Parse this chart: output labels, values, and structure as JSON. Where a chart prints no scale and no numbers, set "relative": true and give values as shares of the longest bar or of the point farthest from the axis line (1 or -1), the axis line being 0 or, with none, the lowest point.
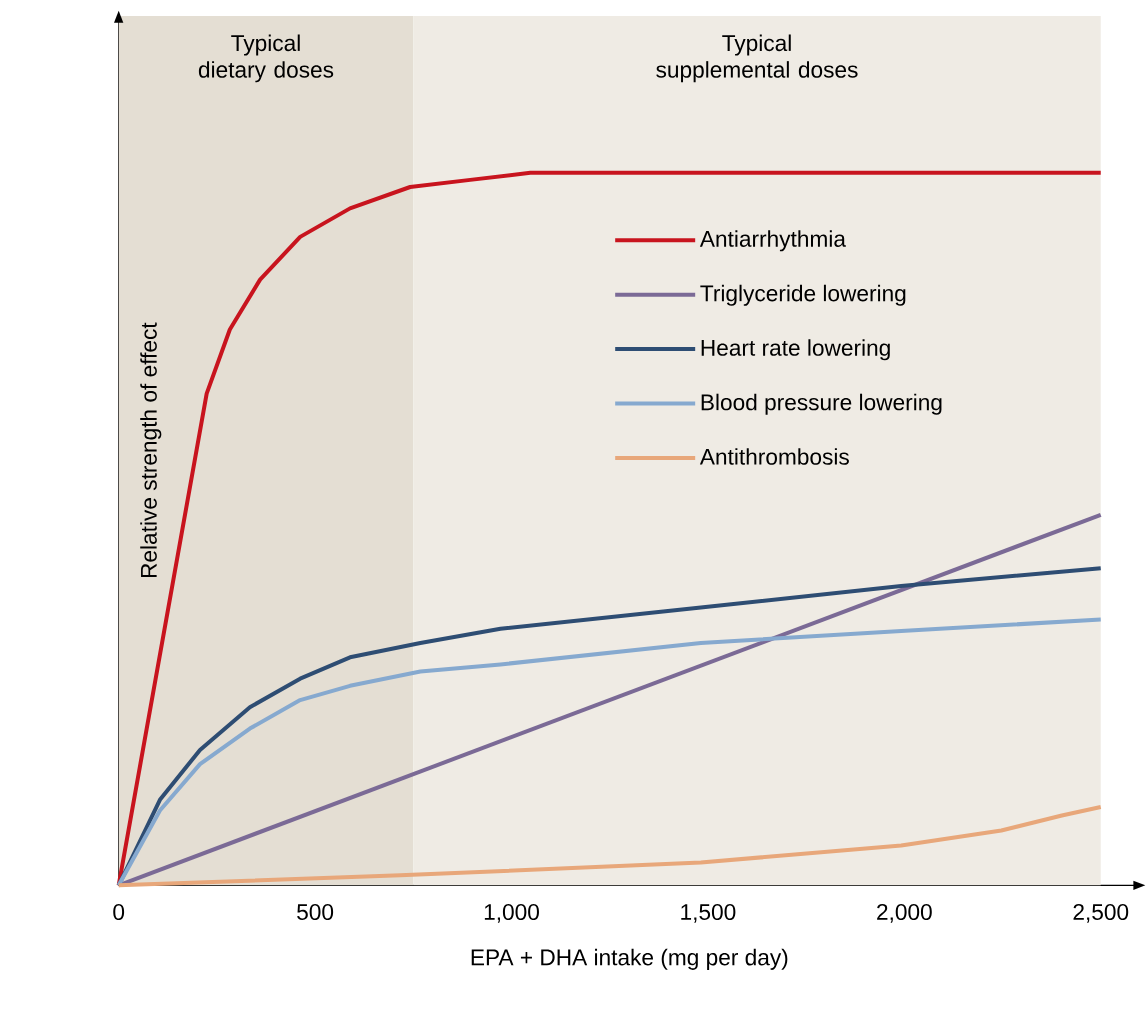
{
  "chart_data": {
    "type": "line",
    "relative": true,
    "xlabel": "EPA + DHA intake (mg per day)",
    "ylabel": "Relative strength of effect",
    "xlim": [
      0,
      2600
    ],
    "xticks": [
      0,
      500,
      {
        "value": 1000,
        "label": "1,000"
      },
      {
        "value": 1500,
        "label": "1,500"
      },
      {
        "value": 2000,
        "label": "2,000"
      },
      {
        "value": 2500,
        "label": "2,500"
      }
    ],
    "legend": "top right",
    "grid": false,
    "marker": "none",
    "line_style": "solid",
    "bands": [
      {
        "axis": "x",
        "from": 0,
        "to": 750,
        "label": "Typical dietary doses",
        "color": "#e4ded3"
      },
      {
        "axis": "x",
        "from": 750,
        "to": 2500,
        "label": "Typical supplemental doses",
        "color": "#efebe4"
      }
    ],
    "series": [
      {
        "name": "Antiarrhythmia",
        "color": "#c8141e",
        "x": [
          0,
          224,
          283,
          360,
          462,
          589,
          742,
          895,
          1048,
          2500
        ],
        "values": [
          0,
          0.69,
          0.78,
          0.85,
          0.91,
          0.95,
          0.98,
          0.99,
          1,
          1
        ]
      },
      {
        "name": "Triglyceride lowering",
        "color": "#7b6a96",
        "x": [
          0,
          2500
        ],
        "values": [
          0,
          0.52
        ]
      },
      {
        "name": "Heart rate lowering",
        "color": "#2e4d73",
        "x": [
          0,
          105,
          207,
          334,
          462,
          589,
          768,
          972,
          1482,
          1992,
          2500
        ],
        "values": [
          0,
          0.12,
          0.19,
          0.25,
          0.29,
          0.32,
          0.34,
          0.36,
          0.39,
          0.42,
          0.445
        ]
      },
      {
        "name": "Blood pressure lowering",
        "color": "#86a9cf",
        "x": [
          0,
          105,
          207,
          334,
          462,
          589,
          768,
          972,
          1482,
          1992,
          2500
        ],
        "values": [
          0,
          0.105,
          0.17,
          0.22,
          0.26,
          0.28,
          0.3,
          0.31,
          0.34,
          0.357,
          0.373
        ]
      },
      {
        "name": "Antithrombosis",
        "color": "#e8a77a",
        "x": [
          0,
          717,
          1482,
          1992,
          2247,
          2401,
          2500
        ],
        "values": [
          0,
          0.014,
          0.032,
          0.056,
          0.077,
          0.098,
          0.11
        ]
      }
    ]
  }
}
